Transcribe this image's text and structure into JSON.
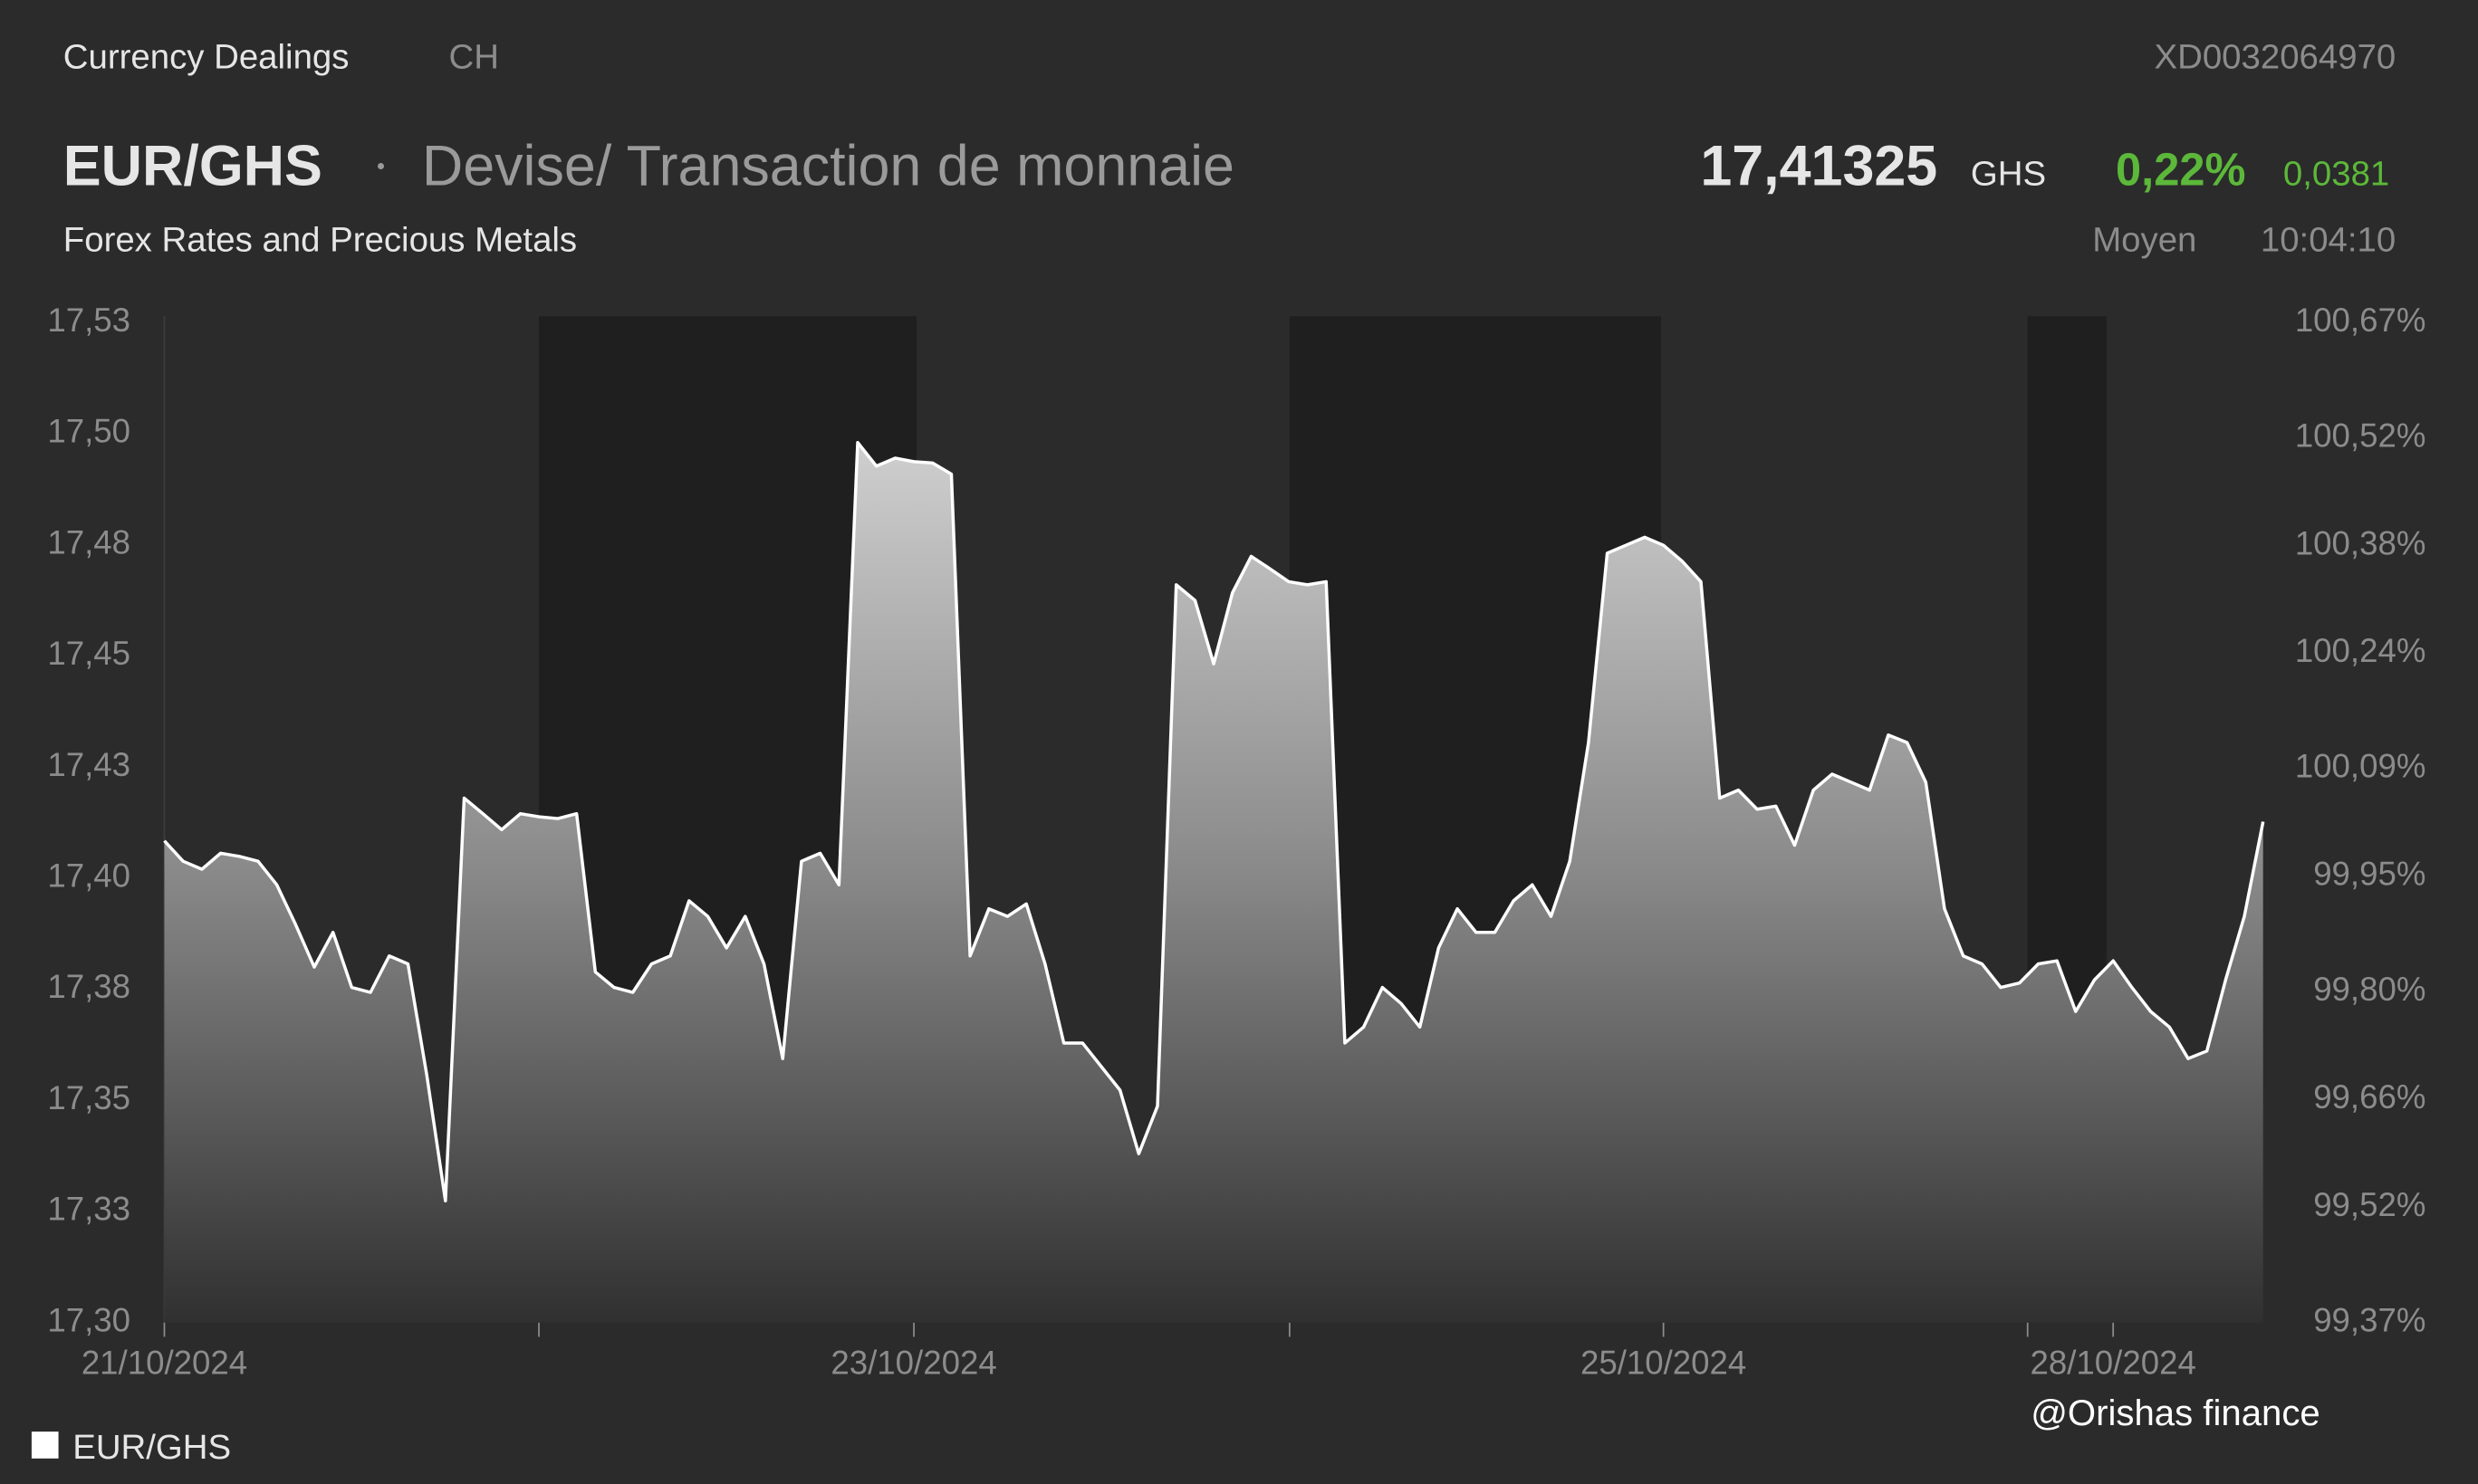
{
  "header": {
    "section": "Currency Dealings",
    "country": "CH",
    "isin": "XD0032064970",
    "symbol": "EUR/GHS",
    "description": "Devise/ Transaction de monnaie",
    "price": "17,41325",
    "currency": "GHS",
    "change_pct": "0,22%",
    "change_abs": "0,0381",
    "subtitle": "Forex Rates and Precious Metals",
    "price_type": "Moyen",
    "time": "10:04:10"
  },
  "chart_data": {
    "type": "area",
    "categories": [
      "21/10/2024",
      null,
      null,
      null,
      null,
      null,
      null,
      null,
      null,
      null,
      null,
      null,
      null,
      null,
      null,
      null,
      null,
      null,
      null,
      null,
      null,
      null,
      null,
      null,
      null,
      null,
      null,
      null,
      null,
      null,
      null,
      null,
      null,
      null,
      null,
      null,
      null,
      null,
      null,
      null,
      "23/10/2024",
      null,
      null,
      null,
      null,
      null,
      null,
      null,
      null,
      null,
      null,
      null,
      null,
      null,
      null,
      null,
      null,
      null,
      null,
      null,
      null,
      null,
      null,
      null,
      null,
      null,
      null,
      null,
      null,
      null,
      null,
      null,
      null,
      null,
      null,
      null,
      null,
      null,
      null,
      null,
      "25/10/2024",
      null,
      null,
      null,
      null,
      null,
      null,
      null,
      null,
      null,
      null,
      null,
      null,
      null,
      null,
      null,
      null,
      null,
      null,
      null,
      null,
      null,
      null,
      null,
      "28/10/2024",
      null,
      null,
      null,
      null,
      null,
      null,
      null,
      null
    ],
    "series": [
      {
        "name": "EUR/GHS",
        "color": "#ffffff",
        "values": [
          17.4084,
          17.4038,
          17.402,
          17.4056,
          17.4049,
          17.4038,
          17.3985,
          17.3896,
          17.38,
          17.3878,
          17.3754,
          17.3743,
          17.3825,
          17.3807,
          17.3558,
          17.3274,
          17.418,
          17.4145,
          17.4109,
          17.4145,
          17.4138,
          17.4134,
          17.4145,
          17.3789,
          17.3754,
          17.3743,
          17.3807,
          17.3825,
          17.3949,
          17.3914,
          17.3843,
          17.3914,
          17.3807,
          17.3594,
          17.4038,
          17.4056,
          17.3985,
          17.498,
          17.4927,
          17.4945,
          17.4937,
          17.4934,
          17.4909,
          17.3825,
          17.3931,
          17.3914,
          17.3942,
          17.3807,
          17.3629,
          17.3629,
          17.3576,
          17.3523,
          17.338,
          17.3487,
          17.466,
          17.4625,
          17.4482,
          17.4642,
          17.4724,
          17.4696,
          17.4667,
          17.466,
          17.4667,
          17.3629,
          17.3665,
          17.3754,
          17.3718,
          17.3665,
          17.3843,
          17.3931,
          17.3878,
          17.3878,
          17.3949,
          17.3985,
          17.3914,
          17.4038,
          17.4305,
          17.4731,
          17.4749,
          17.4767,
          17.4749,
          17.4713,
          17.4667,
          17.418,
          17.4198,
          17.4155,
          17.4162,
          17.4074,
          17.4198,
          17.4234,
          17.4216,
          17.4198,
          17.4322,
          17.4305,
          17.4216,
          17.3931,
          17.3825,
          17.3807,
          17.3754,
          17.3764,
          17.3807,
          17.3814,
          17.37,
          17.3771,
          17.3814,
          17.3754,
          17.37,
          17.3665,
          17.3594,
          17.3611,
          17.3771,
          17.3914,
          17.4127
        ]
      }
    ],
    "ylim": [
      17.3,
      17.525
    ],
    "yticks": [
      {
        "value": 17.3,
        "label": "17,30"
      },
      {
        "value": 17.325,
        "label": "17,33"
      },
      {
        "value": 17.35,
        "label": "17,35"
      },
      {
        "value": 17.375,
        "label": "17,38"
      },
      {
        "value": 17.4,
        "label": "17,40"
      },
      {
        "value": 17.425,
        "label": "17,43"
      },
      {
        "value": 17.45,
        "label": "17,45"
      },
      {
        "value": 17.475,
        "label": "17,48"
      },
      {
        "value": 17.5,
        "label": "17,50"
      },
      {
        "value": 17.525,
        "label": "17,53"
      }
    ],
    "y2lim": [
      99.37,
      100.67
    ],
    "y2ticks": [
      {
        "value": 99.37,
        "label": "99,37%"
      },
      {
        "value": 99.52,
        "label": "99,52%"
      },
      {
        "value": 99.66,
        "label": "99,66%"
      },
      {
        "value": 99.8,
        "label": "99,80%"
      },
      {
        "value": 99.95,
        "label": "99,95%"
      },
      {
        "value": 100.09,
        "label": "100,09%"
      },
      {
        "value": 100.24,
        "label": "100,24%"
      },
      {
        "value": 100.38,
        "label": "100,38%"
      },
      {
        "value": 100.52,
        "label": "100,52%"
      },
      {
        "value": 100.67,
        "label": "100,67%"
      }
    ],
    "grid": false,
    "legend": "bottom-left"
  },
  "watermark": "@Orishas finance"
}
